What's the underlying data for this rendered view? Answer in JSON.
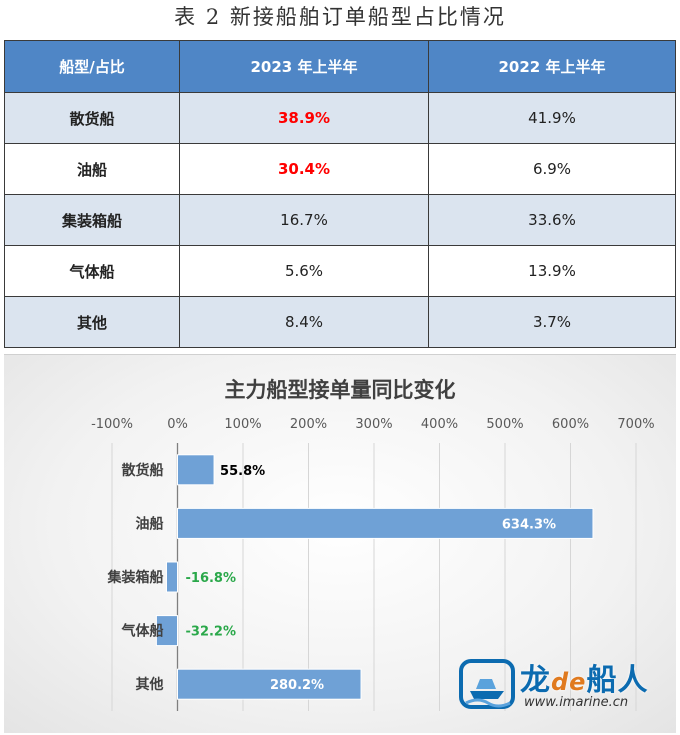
{
  "table": {
    "title": "表 2  新接船舶订单船型占比情况",
    "headers": [
      "船型/占比",
      "2023 年上半年",
      "2022 年上半年"
    ],
    "rows": [
      {
        "type": "散货船",
        "h1_2023": "38.9%",
        "h1_2022": "41.9%"
      },
      {
        "type": "油船",
        "h1_2023": "30.4%",
        "h1_2022": "6.9%"
      },
      {
        "type": "集装箱船",
        "h1_2023": "16.7%",
        "h1_2022": "33.6%"
      },
      {
        "type": "气体船",
        "h1_2023": "5.6%",
        "h1_2022": "13.9%"
      },
      {
        "type": "其他",
        "h1_2023": "8.4%",
        "h1_2022": "3.7%"
      }
    ],
    "highlight_color": "#ff0000",
    "header_color": "#4f86c6"
  },
  "chart_data": {
    "type": "bar",
    "orientation": "horizontal",
    "title": "主力船型接单量同比变化",
    "categories": [
      "散货船",
      "油船",
      "集装箱船",
      "气体船",
      "其他"
    ],
    "values": [
      55.8,
      634.3,
      -16.8,
      -32.2,
      280.2
    ],
    "data_labels": [
      "55.8%",
      "634.3%",
      "-16.8%",
      "-32.2%",
      "280.2%"
    ],
    "xlim": [
      -100,
      700
    ],
    "x_ticks": [
      -100,
      0,
      100,
      200,
      300,
      400,
      500,
      600,
      700
    ],
    "x_tick_labels": [
      "-100%",
      "0%",
      "100%",
      "200%",
      "300%",
      "400%",
      "500%",
      "600%",
      "700%"
    ],
    "axis_position": "top",
    "grid": true,
    "bar_color": "#6fa1d6",
    "positive_label_color": "#000000",
    "inside_label_color": "#ffffff",
    "negative_label_color": "#2aa84a"
  },
  "watermark": {
    "brand_pre": "龙",
    "brand_de": "de",
    "brand_post": "船人",
    "url": "www.imarine.cn"
  }
}
